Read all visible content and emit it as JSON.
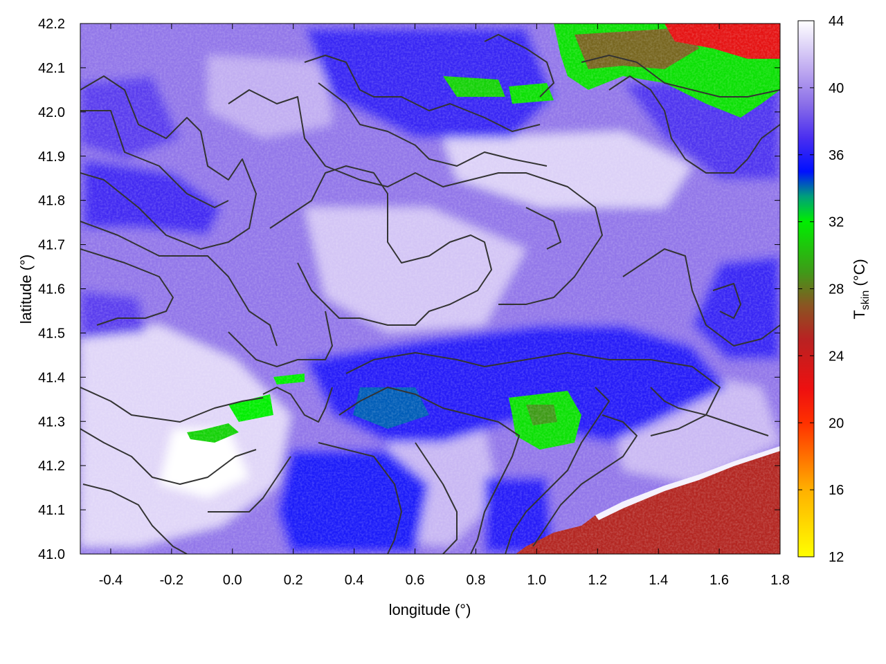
{
  "chart_data": {
    "type": "heatmap",
    "title": "",
    "xlabel": "longitude (°)",
    "ylabel": "latitude (°)",
    "colorbar_label": {
      "main": "T",
      "sub": "skin",
      "suffix": " (°C)"
    },
    "xlim": [
      -0.5,
      1.8
    ],
    "ylim": [
      41.0,
      42.2
    ],
    "x_ticks": [
      "-0.4",
      "-0.2",
      "0.0",
      "0.2",
      "0.4",
      "0.6",
      "0.8",
      "1.0",
      "1.2",
      "1.4",
      "1.6",
      "1.8"
    ],
    "x_tick_values": [
      -0.4,
      -0.2,
      0.0,
      0.2,
      0.4,
      0.6,
      0.8,
      1.0,
      1.2,
      1.4,
      1.6,
      1.8
    ],
    "y_ticks": [
      "41.0",
      "41.1",
      "41.2",
      "41.3",
      "41.4",
      "41.5",
      "41.6",
      "41.7",
      "41.8",
      "41.9",
      "42.0",
      "42.1",
      "42.2"
    ],
    "y_tick_values": [
      41.0,
      41.1,
      41.2,
      41.3,
      41.4,
      41.5,
      41.6,
      41.7,
      41.8,
      41.9,
      42.0,
      42.1,
      42.2
    ],
    "colorbar_range": [
      12,
      44
    ],
    "colorbar_ticks": [
      "12",
      "16",
      "20",
      "24",
      "28",
      "32",
      "36",
      "40",
      "44"
    ],
    "colorbar_tick_values": [
      12,
      16,
      20,
      24,
      28,
      32,
      36,
      40,
      44
    ],
    "colormap": [
      {
        "v": 12,
        "color": "#ffff00"
      },
      {
        "v": 16,
        "color": "#ffb000"
      },
      {
        "v": 20,
        "color": "#ff3000"
      },
      {
        "v": 22,
        "color": "#ee1010"
      },
      {
        "v": 25,
        "color": "#b82222"
      },
      {
        "v": 27,
        "color": "#8a5522"
      },
      {
        "v": 29,
        "color": "#3f9a18"
      },
      {
        "v": 32,
        "color": "#00ee00"
      },
      {
        "v": 33.5,
        "color": "#00a07a"
      },
      {
        "v": 35,
        "color": "#0010ff"
      },
      {
        "v": 37,
        "color": "#4a2ef0"
      },
      {
        "v": 39,
        "color": "#8a6ee8"
      },
      {
        "v": 41,
        "color": "#bda8f0"
      },
      {
        "v": 44,
        "color": "#ffffff"
      }
    ],
    "contours": "elevation isolines (unlabeled)",
    "grid": false
  }
}
